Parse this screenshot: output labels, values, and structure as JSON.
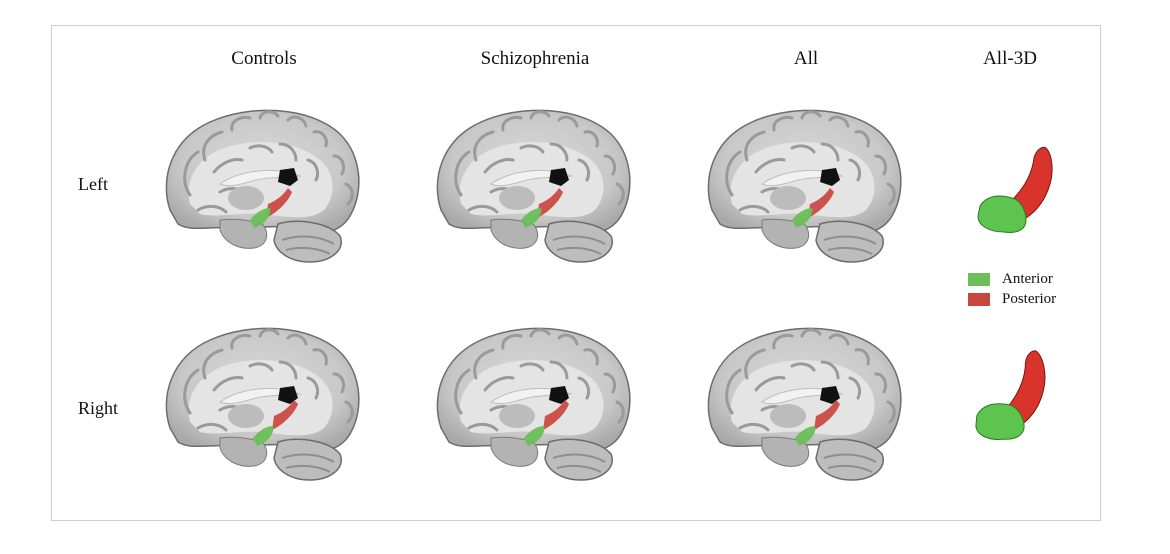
{
  "figure": {
    "columns": [
      "Controls",
      "Schizophrenia",
      "All",
      "All-3D"
    ],
    "rows": [
      "Left",
      "Right"
    ],
    "legend": [
      {
        "label": "Anterior",
        "color": "#6bbf59"
      },
      {
        "label": "Posterior",
        "color": "#c9463f"
      }
    ]
  },
  "colors": {
    "anterior": "#6bbf59",
    "posterior": "#c9463f",
    "anterior_3d": "#5cc44f",
    "posterior_3d": "#d8342c"
  }
}
